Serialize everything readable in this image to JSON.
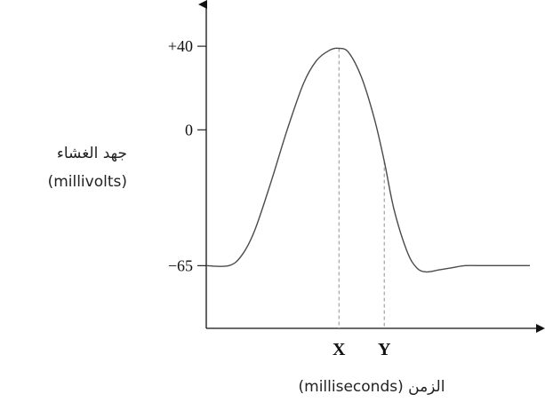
{
  "chart_data": {
    "type": "line",
    "title": "",
    "ylabel": "جهد الغشاء (millivolts)",
    "ylabel_line1": "جهد الغشاء",
    "ylabel_line2": "(millivolts)",
    "xlabel": "(milliseconds) الزمن",
    "ylim": [
      -95,
      60
    ],
    "xlim": [
      0,
      10
    ],
    "grid": false,
    "yticks": [
      {
        "value": 40,
        "label": "+40"
      },
      {
        "value": 0,
        "label": "0"
      },
      {
        "value": -65,
        "label": "−65"
      }
    ],
    "x_markers": [
      {
        "value": 4.1,
        "label": "X"
      },
      {
        "value": 5.5,
        "label": "Y"
      }
    ],
    "series": [
      {
        "x": [
          0.0,
          0.7,
          1.1,
          1.5,
          2.0,
          2.5,
          3.0,
          3.4,
          3.8,
          4.1,
          4.4,
          4.8,
          5.2,
          5.5,
          5.8,
          6.2,
          6.5,
          6.8,
          7.2,
          7.6,
          8.0,
          8.6,
          9.2,
          10.0
        ],
        "y": [
          -65,
          -65,
          -60,
          -48,
          -25,
          0,
          22,
          33,
          38,
          39,
          37,
          25,
          5,
          -15,
          -38,
          -58,
          -66,
          -68,
          -67,
          -66,
          -65,
          -65,
          -65,
          -65
        ]
      }
    ]
  }
}
